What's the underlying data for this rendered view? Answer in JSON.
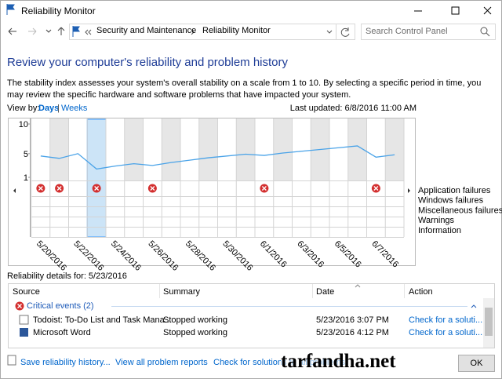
{
  "window": {
    "title": "Reliability Monitor"
  },
  "address": {
    "path": [
      "Security and Maintenance",
      "Reliability Monitor"
    ],
    "search_placeholder": "Search Control Panel"
  },
  "header": {
    "title": "Review your computer's reliability and problem history",
    "description": "The stability index assesses your system's overall stability on a scale from 1 to 10. By selecting a specific period in time, you may review the specific hardware and software problems that have impacted your system."
  },
  "view_by": {
    "label": "View by:",
    "options": [
      "Days",
      "Weeks"
    ],
    "separator": "|"
  },
  "last_updated": "Last updated: 6/8/2016 11:00 AM",
  "chart": {
    "ylim": [
      1,
      10
    ],
    "yticks": [
      10,
      5,
      1
    ],
    "x": [
      "5/20/2016",
      null,
      "5/22/2016",
      null,
      "5/24/2016",
      null,
      "5/26/2016",
      null,
      "5/28/2016",
      null,
      "5/30/2016",
      null,
      "6/1/2016",
      null,
      "6/3/2016",
      null,
      "6/5/2016",
      null,
      "6/7/2016",
      null
    ],
    "stability_index": [
      4.6,
      4.2,
      5.0,
      2.4,
      2.9,
      3.3,
      3.0,
      3.5,
      3.9,
      4.3,
      4.6,
      4.9,
      4.7,
      5.1,
      5.4,
      5.7,
      6.0,
      6.3,
      4.4,
      4.8
    ],
    "application_failures": [
      1,
      1,
      0,
      2,
      0,
      0,
      1,
      0,
      0,
      0,
      0,
      0,
      1,
      0,
      0,
      0,
      0,
      0,
      1,
      0
    ],
    "rows": [
      "Application failures",
      "Windows failures",
      "Miscellaneous failures",
      "Warnings",
      "Information"
    ]
  },
  "details": {
    "title": "Reliability details for: 5/23/2016",
    "columns": [
      "Source",
      "Summary",
      "Date",
      "Action"
    ],
    "group": "Critical events (2)",
    "rows": [
      [
        "Todoist: To-Do List and Task Mana...",
        "Stopped working",
        "5/23/2016 3:07 PM",
        "Check for a soluti..."
      ],
      [
        "Microsoft Word",
        "Stopped working",
        "5/23/2016 4:12 PM",
        "Check for a soluti..."
      ]
    ]
  },
  "footer": {
    "links": [
      "Save reliability history...",
      "View all problem reports",
      "Check for solutions to all problems"
    ],
    "button": "OK"
  },
  "watermark": "tarfandha.net"
}
